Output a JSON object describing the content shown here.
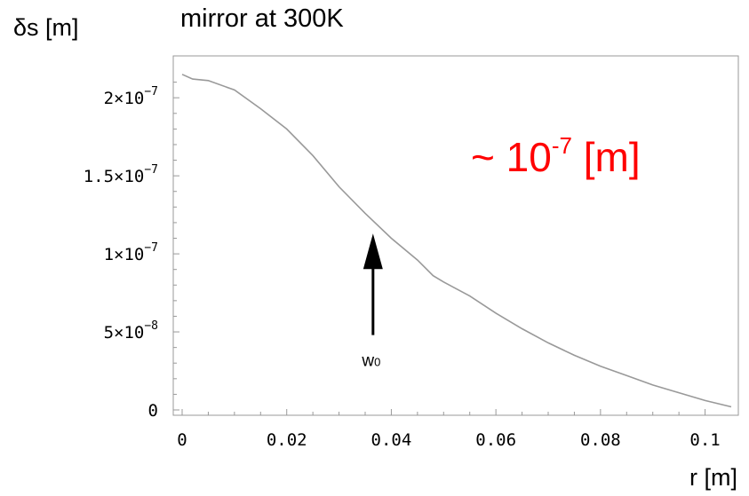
{
  "chart_data": {
    "type": "line",
    "title": "mirror at 300K",
    "ylabel": "δs [m]",
    "xlabel": "r [m]",
    "xlim": [
      0,
      0.105
    ],
    "ylim": [
      0,
      2.2e-07
    ],
    "x_ticks": [
      {
        "value": 0,
        "label": "0"
      },
      {
        "value": 0.02,
        "label": "0.02"
      },
      {
        "value": 0.04,
        "label": "0.04"
      },
      {
        "value": 0.06,
        "label": "0.06"
      },
      {
        "value": 0.08,
        "label": "0.08"
      },
      {
        "value": 0.1,
        "label": "0.1"
      }
    ],
    "y_ticks": [
      {
        "value": 0,
        "mantissa": "0",
        "exponent": ""
      },
      {
        "value": 5e-08,
        "mantissa": "5×10",
        "exponent": "−8"
      },
      {
        "value": 1e-07,
        "mantissa": "1×10",
        "exponent": "−7"
      },
      {
        "value": 1.5e-07,
        "mantissa": "1.5×10",
        "exponent": "−7"
      },
      {
        "value": 2e-07,
        "mantissa": "2×10",
        "exponent": "−7"
      }
    ],
    "grid": false,
    "series": [
      {
        "color": "#999999",
        "x": [
          0,
          0.002,
          0.005,
          0.01,
          0.015,
          0.02,
          0.025,
          0.03,
          0.035,
          0.04,
          0.045,
          0.048,
          0.05,
          0.055,
          0.06,
          0.065,
          0.07,
          0.075,
          0.08,
          0.085,
          0.09,
          0.095,
          0.1,
          0.105
        ],
        "y": [
          2.15e-07,
          2.12e-07,
          2.11e-07,
          2.05e-07,
          1.93e-07,
          1.8e-07,
          1.63e-07,
          1.43e-07,
          1.26e-07,
          1.1e-07,
          9.6e-08,
          8.6e-08,
          8.2e-08,
          7.3e-08,
          6.2e-08,
          5.2e-08,
          4.3e-08,
          3.5e-08,
          2.8e-08,
          2.2e-08,
          1.6e-08,
          1.1e-08,
          6e-09,
          2e-09
        ]
      }
    ],
    "annotations": [
      {
        "id": "w0",
        "text_main": "w",
        "text_sub": "0",
        "x": 0.0365,
        "y_tail": 4.8e-08,
        "y_head": 1.13e-07
      },
      {
        "id": "order",
        "text_main": "~ 10",
        "text_sup": "-7",
        "text_after": " [m]",
        "color": "#ff0000",
        "position": "upper-right"
      }
    ]
  }
}
